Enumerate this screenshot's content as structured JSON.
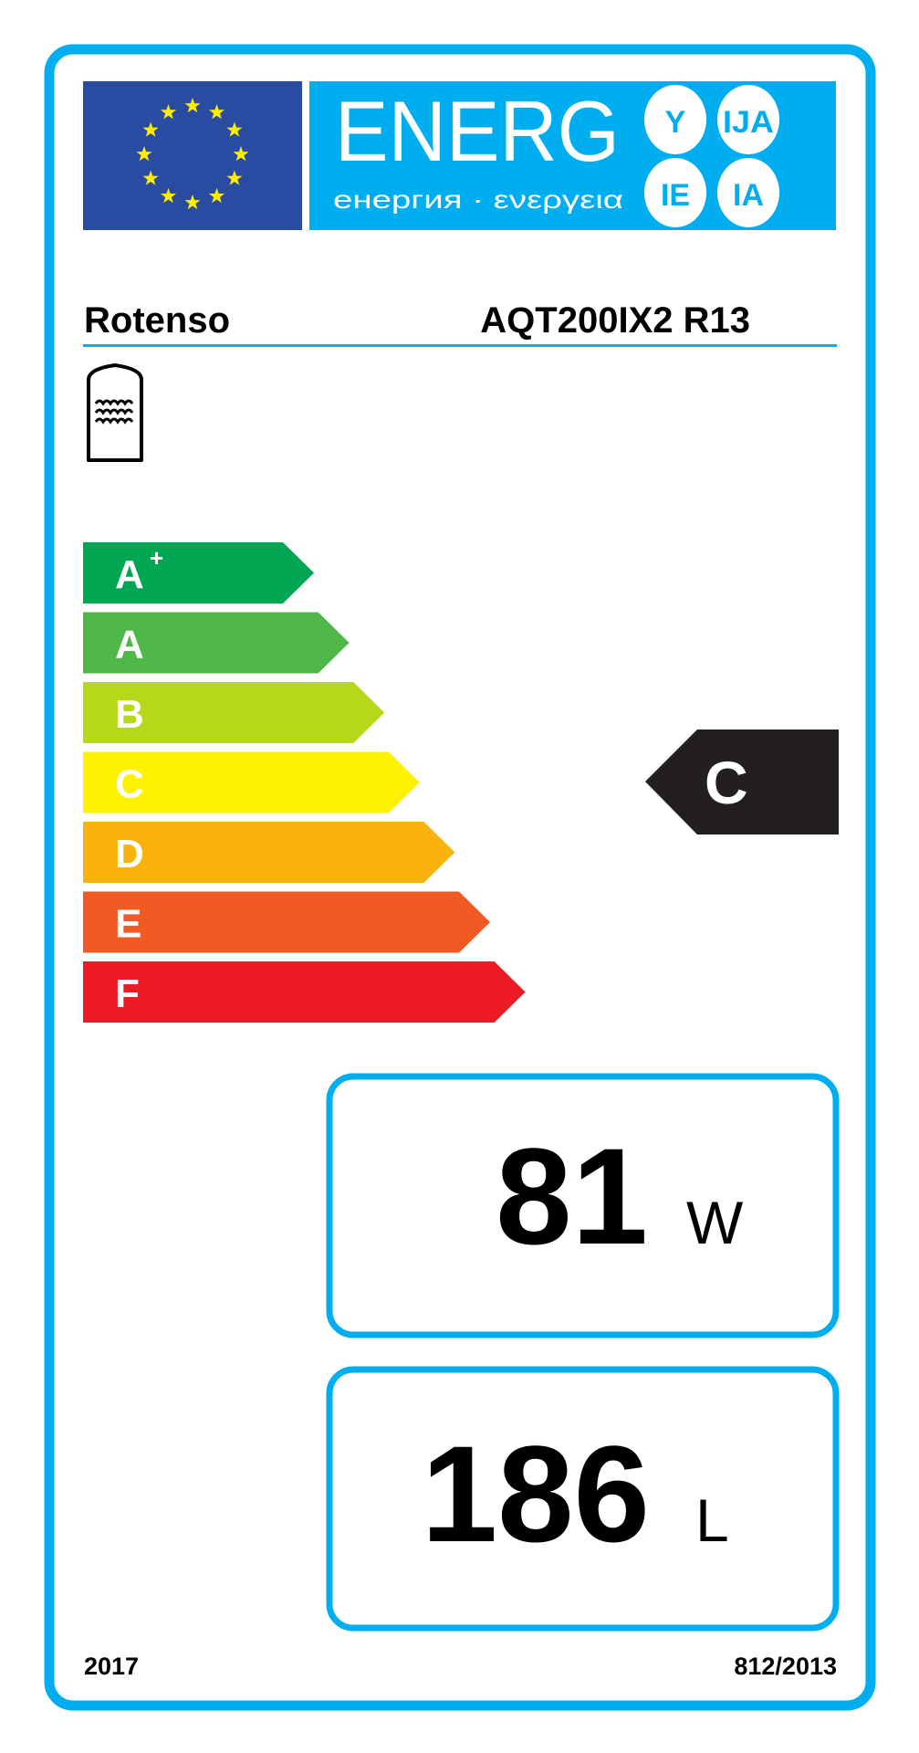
{
  "header": {
    "logo_word": "ENERG",
    "logo_subtitle": "енергия · ενεργεια",
    "logo_suffixes": [
      "Y",
      "IJA",
      "IE",
      "IA"
    ]
  },
  "supplier": "Rotenso",
  "model": "AQT200IX2 R13",
  "product_icon": "water-storage-tank-icon",
  "scale": [
    {
      "label": "A",
      "sup": "+",
      "color": "#00A651"
    },
    {
      "label": "A",
      "sup": "",
      "color": "#50B848"
    },
    {
      "label": "B",
      "sup": "",
      "color": "#B5D81B"
    },
    {
      "label": "C",
      "sup": "",
      "color": "#FFF200"
    },
    {
      "label": "D",
      "sup": "",
      "color": "#F9B20E"
    },
    {
      "label": "E",
      "sup": "",
      "color": "#F15A22"
    },
    {
      "label": "F",
      "sup": "",
      "color": "#ED1C24"
    }
  ],
  "rating": {
    "label": "C",
    "color": "#231F20"
  },
  "standing_loss": {
    "value": "81",
    "unit": "W"
  },
  "volume": {
    "value": "186",
    "unit": "L"
  },
  "footer": {
    "year": "2017",
    "regulation": "812/2013"
  },
  "colors": {
    "frame": "#00AEEF",
    "eu_blue": "#2A4BA2",
    "eu_star": "#FFED00"
  }
}
